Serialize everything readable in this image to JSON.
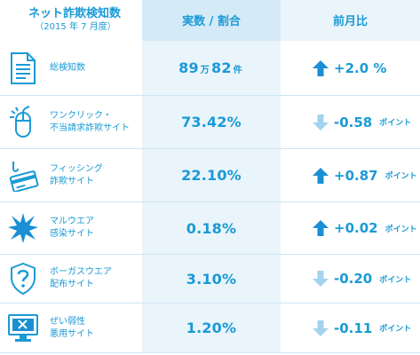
{
  "header": {
    "title": "ネット詐欺検知数",
    "subtitle": "（2015 年 7 月度）",
    "col_value": "実数 / 割合",
    "col_change": "前月比"
  },
  "rows": [
    {
      "icon": "document-icon",
      "label_lines": [
        "総検知数"
      ],
      "value_main1": "89",
      "value_unit1": "万",
      "value_main2": "82",
      "value_unit2": "件",
      "direction": "up",
      "change": "+2.0 %",
      "change_unit": ""
    },
    {
      "icon": "mouse-click-icon",
      "label_lines": [
        "ワンクリック・",
        "不当請求詐欺サイト"
      ],
      "value": "73.42%",
      "direction": "down",
      "change": "-0.58",
      "change_unit": "ポイント"
    },
    {
      "icon": "phishing-hook-card-icon",
      "label_lines": [
        "フィッシング",
        "詐欺サイト"
      ],
      "value": "22.10%",
      "direction": "up",
      "change": "+0.87",
      "change_unit": "ポイント"
    },
    {
      "icon": "malware-burst-icon",
      "label_lines": [
        "マルウエア",
        "感染サイト"
      ],
      "value": "0.18%",
      "direction": "up",
      "change": "+0.02",
      "change_unit": "ポイント"
    },
    {
      "icon": "bogus-shield-question-icon",
      "label_lines": [
        "ボーガスウエア",
        "配布サイト"
      ],
      "value": "3.10%",
      "direction": "down",
      "change": "-0.20",
      "change_unit": "ポイント"
    },
    {
      "icon": "vulnerability-monitor-icon",
      "label_lines": [
        "ぜい弱性",
        "悪用サイト"
      ],
      "value": "1.20%",
      "direction": "down",
      "change": "-0.11",
      "change_unit": "ポイント"
    }
  ],
  "colors": {
    "accent": "#1a9ad6",
    "arrow_up": "#1a8fd3",
    "arrow_down": "#a3d3ee",
    "value_cell_bg": "#eaf4fb",
    "header_value_bg": "#d4eaf7"
  }
}
